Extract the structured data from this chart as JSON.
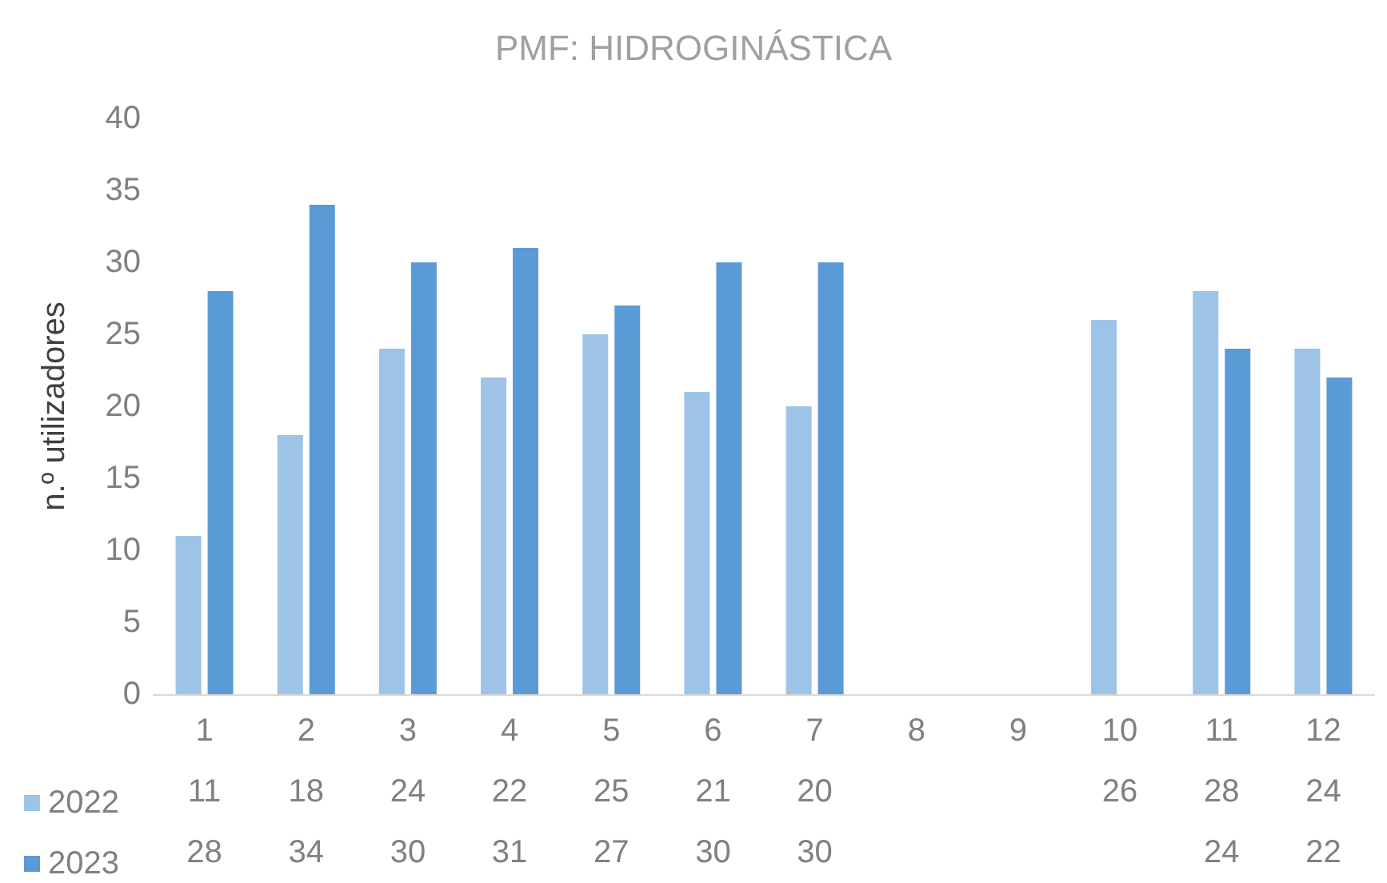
{
  "chart_data": {
    "type": "bar",
    "title": "PMF: HIDROGINÁSTICA",
    "ylabel": "n.º utilizadores",
    "categories": [
      "1",
      "2",
      "3",
      "4",
      "5",
      "6",
      "7",
      "8",
      "9",
      "10",
      "11",
      "12"
    ],
    "series": [
      {
        "name": "2022",
        "color": "#9dc3e6",
        "values": [
          11,
          18,
          24,
          22,
          25,
          21,
          20,
          null,
          null,
          26,
          28,
          24
        ]
      },
      {
        "name": "2023",
        "color": "#5b9bd5",
        "values": [
          28,
          34,
          30,
          31,
          27,
          30,
          30,
          null,
          null,
          null,
          24,
          22
        ]
      }
    ],
    "ylim": [
      0,
      40
    ],
    "yticks": [
      0,
      5,
      10,
      15,
      20,
      25,
      30,
      35,
      40
    ],
    "grid": false,
    "legend": "bottom left",
    "data_labels": true
  }
}
